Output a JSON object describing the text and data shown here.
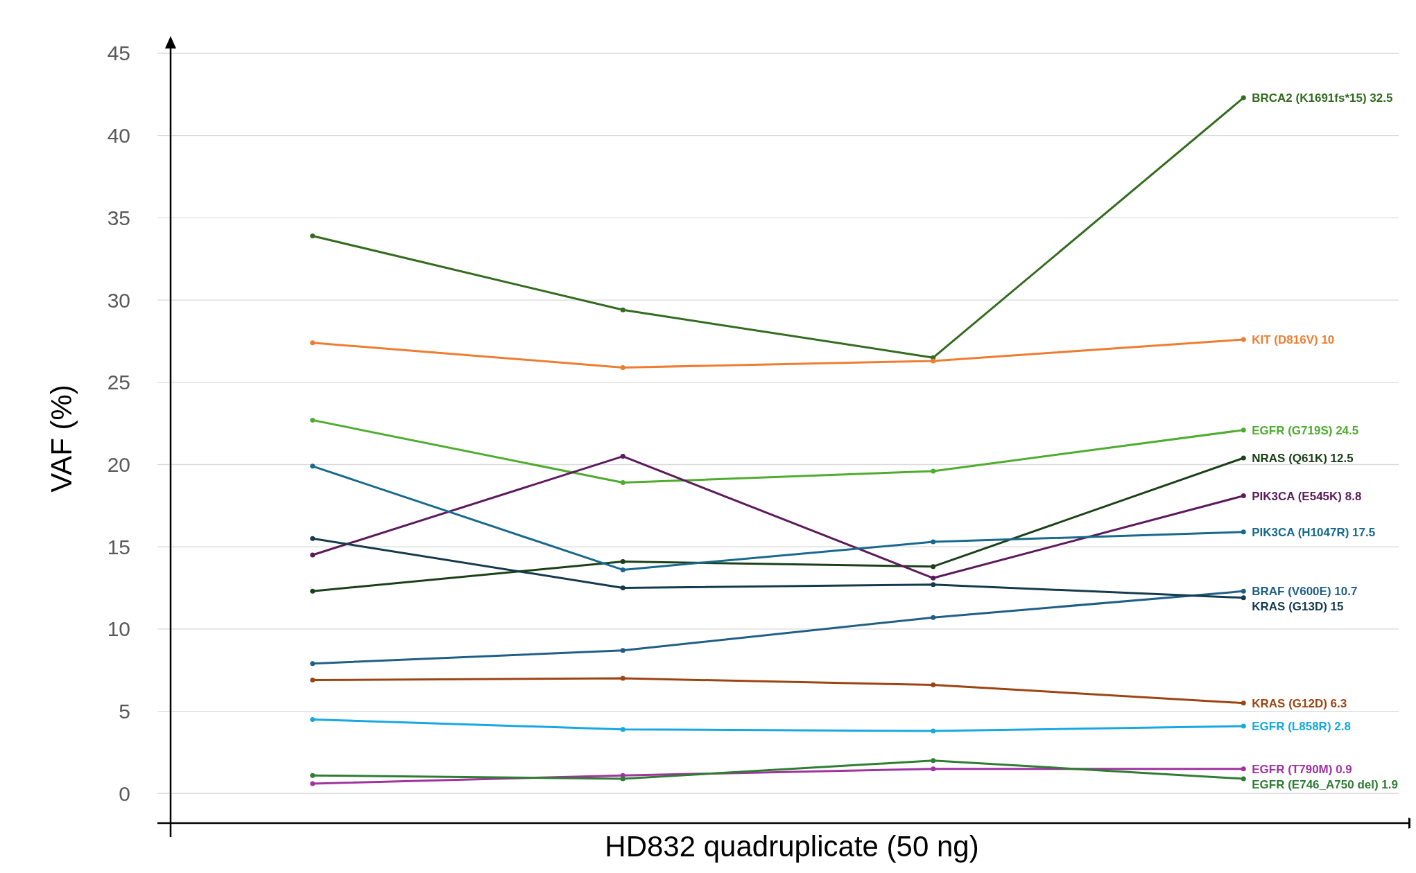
{
  "chart_data": {
    "type": "line",
    "xlabel": "HD832 quadruplicate (50 ng)",
    "ylabel": "VAF (%)",
    "categories": [
      null,
      null,
      null,
      null
    ],
    "ylim": [
      -1.8,
      45.8
    ],
    "yticks": [
      0,
      5,
      10,
      15,
      20,
      25,
      30,
      35,
      40,
      45
    ],
    "grid": "y",
    "marker": "circle",
    "series": [
      {
        "name": "BRCA2 (K1691fs*15) 32.5",
        "color": "#336b1f",
        "values": [
          33.9,
          29.4,
          26.5,
          42.3
        ]
      },
      {
        "name": "KIT (D816V) 10",
        "color": "#ed7d31",
        "values": [
          27.4,
          25.9,
          26.3,
          27.6
        ]
      },
      {
        "name": "EGFR (G719S) 24.5",
        "color": "#4eac2e",
        "values": [
          22.7,
          18.9,
          19.6,
          22.1
        ]
      },
      {
        "name": "NRAS (Q61K) 12.5",
        "color": "#1a4017",
        "values": [
          12.3,
          14.1,
          13.8,
          20.4
        ]
      },
      {
        "name": "PIK3CA (E545K) 8.8",
        "color": "#5c1a5c",
        "values": [
          14.5,
          20.5,
          13.1,
          18.1
        ]
      },
      {
        "name": "PIK3CA (H1047R) 17.5",
        "color": "#17698d",
        "values": [
          19.9,
          13.6,
          15.3,
          15.9
        ]
      },
      {
        "name": "BRAF (V600E) 10.7",
        "color": "#1f5f86",
        "values": [
          7.9,
          8.7,
          10.7,
          12.3
        ]
      },
      {
        "name": "KRAS (G13D) 15",
        "color": "#143a4d",
        "values": [
          15.5,
          12.5,
          12.7,
          11.9
        ]
      },
      {
        "name": "KRAS (G12D) 6.3",
        "color": "#9c4412",
        "values": [
          6.9,
          7.0,
          6.6,
          5.5
        ]
      },
      {
        "name": "EGFR (L858R) 2.8",
        "color": "#16a8e0",
        "values": [
          4.5,
          3.9,
          3.8,
          4.1
        ]
      },
      {
        "name": "EGFR (T790M) 0.9",
        "color": "#a033a0",
        "values": [
          0.6,
          1.1,
          1.5,
          1.5
        ]
      },
      {
        "name": "EGFR (E746_A750 del) 1.9",
        "color": "#2e7d32",
        "values": [
          1.1,
          0.9,
          2.0,
          0.9
        ]
      }
    ]
  }
}
